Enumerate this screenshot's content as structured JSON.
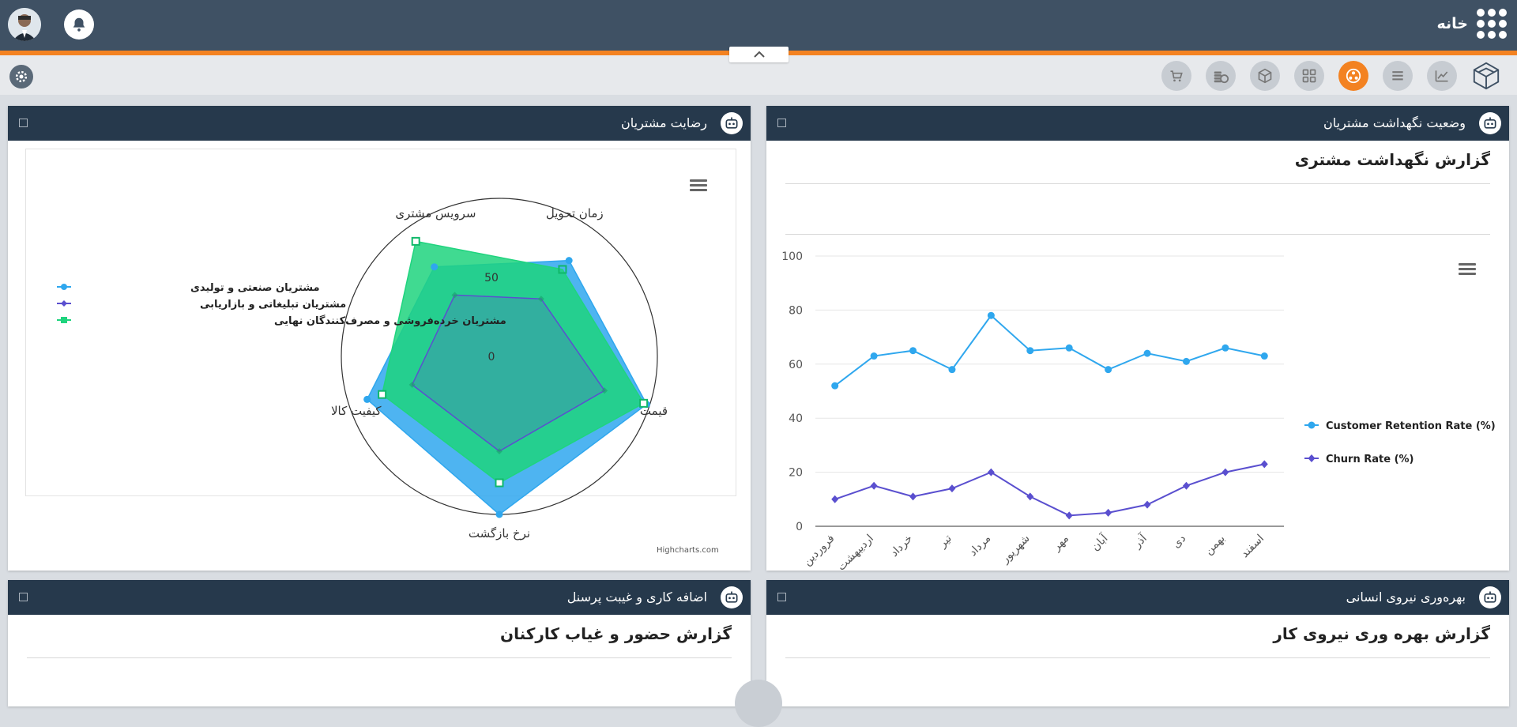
{
  "header": {
    "app_title": "خانه"
  },
  "colors": {
    "header_bg": "#3f5164",
    "accent": "#f38221",
    "panel_head": "#26394c",
    "series_blue": "#2fa7ee",
    "series_purple": "#5a4fcf",
    "series_green": "#1fd47e"
  },
  "toolbar": {
    "icons": [
      "logo-icon",
      "analytics-icon",
      "list-icon",
      "users-network-icon",
      "dashboard-grid-icon",
      "package-icon",
      "coins-icon",
      "cart-icon"
    ]
  },
  "panels": {
    "retention": {
      "title": "وضعیت نگهداشت مشتریان",
      "report_title": "گزارش نگهداشت مشتری"
    },
    "satisfaction": {
      "title": "رضایت مشتریان"
    },
    "productivity": {
      "title": "بهره‌وری نیروی انسانی",
      "report_title": "گزارش بهره وری نیروی کار"
    },
    "attendance": {
      "title": "اضافه کاری و غیبت پرسنل",
      "report_title": "گزارش حضور و غیاب کارکنان"
    }
  },
  "credits": "Highcharts.com",
  "chart_data": [
    {
      "type": "line",
      "categories": [
        "فروردین",
        "اردیبهشت",
        "خرداد",
        "تیر",
        "مرداد",
        "شهریور",
        "مهر",
        "آبان",
        "آذر",
        "دی",
        "بهمن",
        "اسفند"
      ],
      "ylim": [
        0,
        100
      ],
      "yticks": [
        0,
        20,
        40,
        60,
        80,
        100
      ],
      "legend": "right",
      "series": [
        {
          "name": "Customer Retention Rate (%)",
          "marker": "circle",
          "values": [
            52,
            63,
            65,
            58,
            78,
            65,
            66,
            58,
            64,
            61,
            66,
            63
          ]
        },
        {
          "name": "Churn Rate (%)",
          "marker": "diamond",
          "values": [
            10,
            15,
            11,
            14,
            20,
            11,
            4,
            5,
            8,
            15,
            20,
            23
          ]
        }
      ]
    },
    {
      "type": "radar",
      "categories": [
        "زمان تحویل",
        "قیمت",
        "نرخ بازگشت",
        "کیفیت کالا",
        "سرویس مشتری"
      ],
      "rmax": 100,
      "ring_labels": [
        "0",
        "50"
      ],
      "legend": "left",
      "series": [
        {
          "name": "مشتریان صنعتی و تولیدی",
          "values": [
            75,
            98,
            100,
            88,
            70
          ]
        },
        {
          "name": "مشتریان تبلیغاتی و بازاریابی",
          "values": [
            45,
            70,
            60,
            58,
            48
          ]
        },
        {
          "name": "مشتریان خرده‌فروشی و مصرف‌کنندگان نهایی",
          "values": [
            68,
            96,
            80,
            78,
            90
          ]
        }
      ]
    }
  ]
}
